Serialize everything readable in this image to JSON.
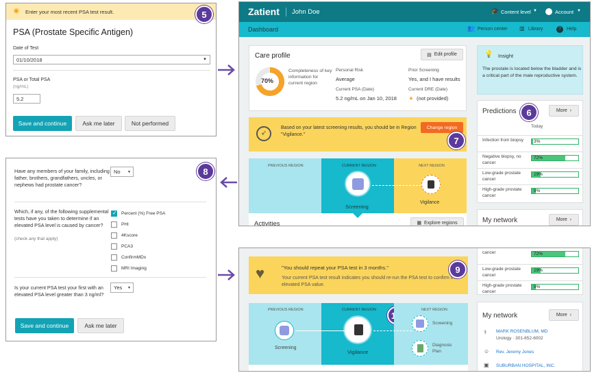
{
  "psa_form": {
    "banner": "Enter your most recent PSA test result.",
    "title": "PSA (Prostate Specific Antigen)",
    "date_label": "Date of Test",
    "date_value": "01/10/2018",
    "psa_label": "PSA or Total PSA",
    "psa_unit": "(ng/mL)",
    "psa_value": "5.2",
    "save_label": "Save and continue",
    "later_label": "Ask me later",
    "not_performed_label": "Not performed",
    "badge": "5"
  },
  "questions_form": {
    "badge": "8",
    "q1": "Have any members of your family, including father, brothers, grandfathers, uncles, or nephews had prostate cancer?",
    "q1_value": "No",
    "q2": "Which, if any, of the following supplemental tests have you taken to determine if an elevated PSA level is caused by cancer?",
    "q2_hint": "(check any that apply)",
    "tests": [
      {
        "label": "Percent (%) Free PSA",
        "checked": true
      },
      {
        "label": "PHI",
        "checked": false
      },
      {
        "label": "4Kscore",
        "checked": false
      },
      {
        "label": "PCA3",
        "checked": false
      },
      {
        "label": "ConfirmMDx",
        "checked": false
      },
      {
        "label": "MRI Imaging",
        "checked": false
      }
    ],
    "q3": "Is your current PSA test your first with an elevated PSA level greater than 3 ng/ml?",
    "q3_value": "Yes",
    "save_label": "Save and continue",
    "later_label": "Ask me later"
  },
  "app": {
    "logo": "Zatient",
    "user": "John Doe",
    "content_level": "Content level",
    "account": "Account",
    "nav_title": "Dashboard",
    "person_center": "Person center",
    "library": "Library",
    "help": "Help"
  },
  "care_profile": {
    "title": "Care profile",
    "edit": "Edit profile",
    "percent": "70%",
    "percent_value": 70,
    "completeness": "Completeness of key information for current region",
    "risk_label": "Personal Risk",
    "risk_value": "Average",
    "prior_label": "Prior Screening",
    "prior_value": "Yes, and I have results",
    "psa_label": "Current PSA (Date)",
    "psa_value": "5.2 ng/mL on Jan 10, 2018",
    "dre_label": "Current DRE (Date)",
    "dre_value": "(not provided)"
  },
  "region_alert": {
    "text": "Based on your latest screening results, you should be in Region \"Vigilance.\"",
    "button": "Change region",
    "badge": "7"
  },
  "regions": {
    "previous": "PREVIOUS REGION",
    "current": "CURRENT REGION",
    "next": "NEXT REGION",
    "screening": "Screening",
    "vigilance": "Vigilance",
    "activities": "Activities",
    "explore": "Explore regions"
  },
  "insight": {
    "title": "Insight",
    "text": "The prostate is located below the bladder and is a critical part of the male reproductive system."
  },
  "predictions": {
    "title": "Predictions",
    "more": "More",
    "today": "Today",
    "badge": "6",
    "items": [
      {
        "label": "Infection from biopsy",
        "value": "3%",
        "pct": 3
      },
      {
        "label": "Negative biopsy, no cancer",
        "value": "72%",
        "pct": 72
      },
      {
        "label": "Low-grade prostate cancer",
        "value": "19%",
        "pct": 19
      },
      {
        "label": "High-grade prostate cancer",
        "value": "9%",
        "pct": 9
      }
    ]
  },
  "network": {
    "title": "My network",
    "more": "More",
    "contacts": [
      {
        "name": "MARK ROSENBLUM, MD",
        "detail": "Urology · 301-652-6002"
      },
      {
        "name": "Rev. Jeremy Jones",
        "detail": ""
      },
      {
        "name": "SUBURBAN HOSPITAL, INC.",
        "detail": ""
      }
    ]
  },
  "repeat_alert": {
    "title": "\"You should repeat your PSA test in 3 months.\"",
    "text": "Your current PSA test result indicates you should re-run the PSA test to confirm the elevated PSA value.",
    "badge": "9"
  },
  "regions2": {
    "previous": "PREVIOUS REGION",
    "current": "CURRENT REGION",
    "next": "NEXT REGION",
    "screening": "Screening",
    "vigilance": "Vigilance",
    "next1": "Screening",
    "next2": "Diagnosis Plan",
    "badge": "10"
  },
  "preds_partial": [
    {
      "label": "cancer",
      "value": "72%",
      "pct": 72
    },
    {
      "label": "Low-grade prostate cancer",
      "value": "19%",
      "pct": 19
    },
    {
      "label": "High-grade prostate cancer",
      "value": "9%",
      "pct": 9
    }
  ],
  "colors": {
    "teal": "#13a3b5",
    "dark_teal": "#0d7a86",
    "yellow": "#fbd55b",
    "orange": "#f26a21",
    "purple": "#5b3a9b",
    "cyan_panel": "#a9e5ee"
  }
}
